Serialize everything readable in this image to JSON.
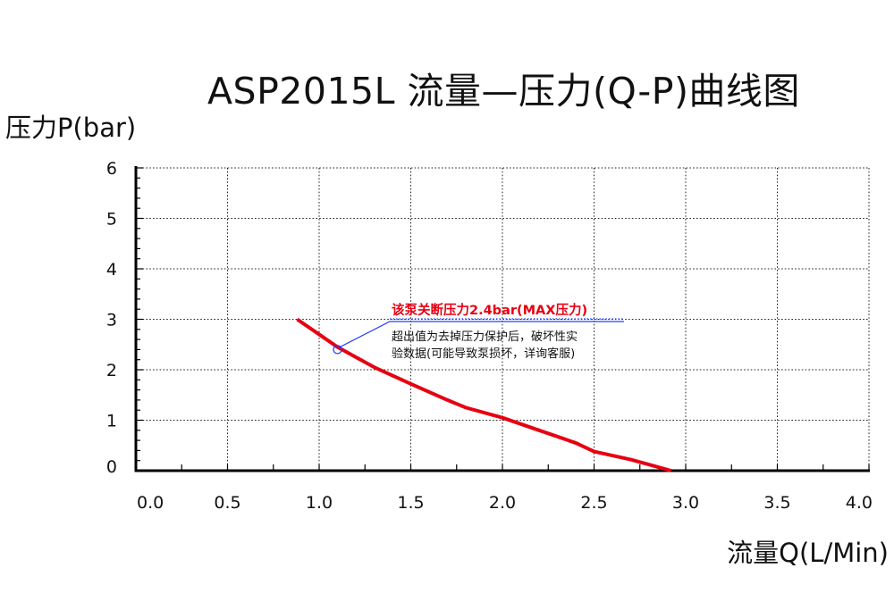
{
  "chart_data": {
    "type": "line",
    "title": "ASP2015L 流量—压力(Q-P)曲线图",
    "ylabel": "压力P(bar)",
    "xlabel": "流量Q(L/Min)",
    "xlim": [
      0,
      4
    ],
    "ylim": [
      0,
      6
    ],
    "x_ticks": [
      "0.0",
      "0.5",
      "1.0",
      "1.5",
      "2.0",
      "2.5",
      "3.0",
      "3.5",
      "4.0"
    ],
    "y_ticks": [
      "0",
      "1",
      "2",
      "3",
      "4",
      "5",
      "6"
    ],
    "grid": true,
    "series": [
      {
        "color": "#e60012",
        "x": [
          0.88,
          1.0,
          1.1,
          1.2,
          1.3,
          1.5,
          1.7,
          1.8,
          2.0,
          2.2,
          2.4,
          2.5,
          2.7,
          2.8,
          2.92
        ],
        "y": [
          3.0,
          2.7,
          2.45,
          2.25,
          2.05,
          1.72,
          1.4,
          1.25,
          1.05,
          0.8,
          0.55,
          0.38,
          0.22,
          0.12,
          0.0
        ]
      }
    ],
    "annotation": {
      "point": {
        "x": 1.1,
        "y": 2.4
      },
      "highlight": "该泵关断压力2.4bar(MAX压力)",
      "line1": "超出值为去掉压力保护后，破坏性实",
      "line2": "验数据(可能导致泵损坏，详询客服)",
      "highlight_color": "#e60012",
      "leader_color": "#1f3fff"
    }
  }
}
